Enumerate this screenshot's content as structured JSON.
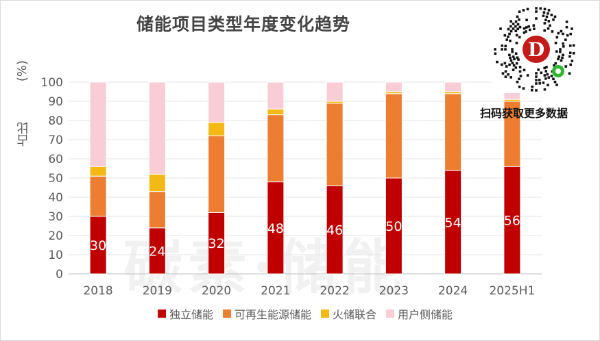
{
  "chart_data": {
    "type": "bar",
    "stacked": true,
    "title": "储能项目类型年度变化趋势",
    "ylabel": "占比",
    "ylabel_unit": "(%)",
    "ylim": [
      0,
      100
    ],
    "yticks": [
      0,
      10,
      20,
      30,
      40,
      50,
      60,
      70,
      80,
      90,
      100
    ],
    "categories": [
      "2018",
      "2019",
      "2020",
      "2021",
      "2022",
      "2023",
      "2024",
      "2025H1"
    ],
    "series": [
      {
        "name": "独立储能",
        "color": "#c00000",
        "values": [
          30,
          24,
          32,
          48,
          46,
          50,
          54,
          56
        ],
        "show_labels": true
      },
      {
        "name": "可再生能源储能",
        "color": "#ed7d31",
        "values": [
          21,
          19,
          40,
          35,
          43,
          44,
          40,
          34
        ]
      },
      {
        "name": "火储联合",
        "color": "#f4b914",
        "values": [
          5,
          9,
          7,
          3,
          1,
          1,
          1,
          1
        ]
      },
      {
        "name": "用户侧储能",
        "color": "#f8cdd6",
        "values": [
          44,
          48,
          21,
          14,
          10,
          5,
          5,
          9
        ]
      }
    ],
    "legend_position": "bottom"
  },
  "qr": {
    "caption": "扫码获取更多数据"
  },
  "watermark": {
    "text": "碳素·储能"
  }
}
